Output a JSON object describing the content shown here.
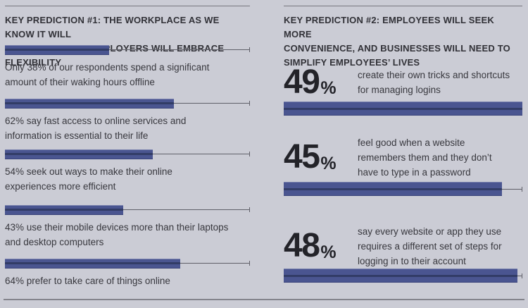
{
  "page": {
    "background_color": "#cbccd5",
    "bar_color": "#4a5590",
    "bar_stripe_color": "#323c66",
    "rule_color": "#75757d"
  },
  "left_panel": {
    "title": "KEY PREDICTION #1: THE WORKPLACE AS WE KNOW IT WILL\nTRANSFORM AND EMPLOYERS WILL EMBRACE FLEXIBILITY",
    "items": [
      {
        "value": 38,
        "bar_width_pct": 42.5,
        "caption": "Only 38% of our respondents spend a significant\namount of their waking hours offline"
      },
      {
        "value": 62,
        "bar_width_pct": 69.0,
        "caption": "62% say fast access to online services and\ninformation is essential to their life"
      },
      {
        "value": 54,
        "bar_width_pct": 60.3,
        "caption": "54% seek out ways to make their online\nexperiences more efficient"
      },
      {
        "value": 43,
        "bar_width_pct": 48.3,
        "caption": "43% use their mobile devices more than their laptops\nand desktop computers"
      },
      {
        "value": 64,
        "bar_width_pct": 71.6,
        "caption": "64% prefer to take care of things online"
      }
    ]
  },
  "right_panel": {
    "title": "KEY PREDICTION #2: EMPLOYEES WILL SEEK MORE\nCONVENIENCE, AND BUSINESSES WILL NEED TO\nSIMPLIFY EMPLOYEES’ LIVES",
    "items": [
      {
        "value": 49,
        "percent_sign": "%",
        "bar_width_pct": 100,
        "text": "create their own tricks and shortcuts\nfor managing logins"
      },
      {
        "value": 45,
        "percent_sign": "%",
        "bar_width_pct": 91.4,
        "text": "feel good when a website\nremembers them and they don’t\nhave to type in a password"
      },
      {
        "value": 48,
        "percent_sign": "%",
        "bar_width_pct": 97.9,
        "text": "say every website or app they use\nrequires a different set of steps for\nlogging in to their account"
      }
    ]
  },
  "chart_data": [
    {
      "type": "bar",
      "orientation": "horizontal",
      "title": "KEY PREDICTION #1: THE WORKPLACE AS WE KNOW IT WILL TRANSFORM AND EMPLOYERS WILL EMBRACE FLEXIBILITY",
      "categories": [
        "Only 38% of our respondents spend a significant amount of their waking hours offline",
        "62% say fast access to online services and information is essential to their life",
        "54% seek out ways to make their online experiences more efficient",
        "43% use their mobile devices more than their laptops and desktop computers",
        "64% prefer to take care of things online"
      ],
      "values": [
        38,
        62,
        54,
        43,
        64
      ],
      "unit": "percent",
      "xlim": [
        0,
        100
      ],
      "grid": false,
      "legend": false,
      "bar_color": "#4a5590"
    },
    {
      "type": "bar",
      "orientation": "horizontal",
      "title": "KEY PREDICTION #2: EMPLOYEES WILL SEEK MORE CONVENIENCE, AND BUSINESSES WILL NEED TO SIMPLIFY EMPLOYEES’ LIVES",
      "categories": [
        "create their own tricks and shortcuts for managing logins",
        "feel good when a website remembers them and they don’t have to type in a password",
        "say every website or app they use requires a different set of steps for logging in to their account"
      ],
      "values": [
        49,
        45,
        48
      ],
      "unit": "percent",
      "xlim": [
        0,
        100
      ],
      "grid": false,
      "legend": false,
      "bar_color": "#4a5590"
    }
  ]
}
